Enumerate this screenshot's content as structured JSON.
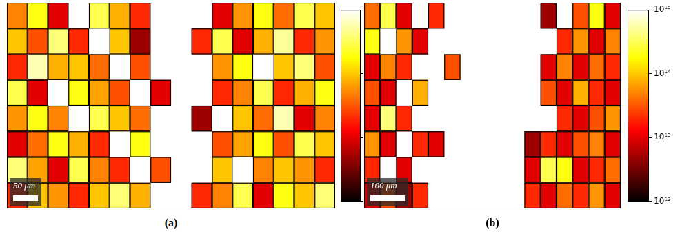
{
  "chart_data": [
    {
      "type": "heatmap",
      "label": "(a)",
      "scale_bar": "50 μm",
      "tick_labels": false,
      "log": true,
      "cells": [
        [
          50000000000000.0,
          200000000000000.0,
          10000000000000.0,
          null,
          300000000000000.0,
          80000000000000.0,
          20000000000000.0,
          null,
          null,
          null,
          10000000000000.0,
          60000000000000.0,
          200000000000000.0,
          40000000000000.0,
          300000000000000.0,
          100000000000000.0
        ],
        [
          100000000000000.0,
          30000000000000.0,
          400000000000000.0,
          20000000000000.0,
          null,
          100000000000000.0,
          5000000000000.0,
          null,
          null,
          20000000000000.0,
          300000000000000.0,
          10000000000000.0,
          80000000000000.0,
          500000000000000.0,
          20000000000000.0,
          60000000000000.0
        ],
        [
          20000000000000.0,
          600000000000000.0,
          80000000000000.0,
          100000000000000.0,
          40000000000000.0,
          null,
          30000000000000.0,
          null,
          null,
          null,
          60000000000000.0,
          200000000000000.0,
          null,
          100000000000000.0,
          400000000000000.0,
          30000000000000.0
        ],
        [
          300000000000000.0,
          10000000000000.0,
          null,
          200000000000000.0,
          70000000000000.0,
          30000000000000.0,
          null,
          10000000000000.0,
          null,
          null,
          20000000000000.0,
          50000000000000.0,
          300000000000000.0,
          20000000000000.0,
          80000000000000.0,
          200000000000000.0
        ],
        [
          60000000000000.0,
          200000000000000.0,
          50000000000000.0,
          null,
          300000000000000.0,
          100000000000000.0,
          40000000000000.0,
          null,
          null,
          5000000000000.0,
          null,
          100000000000000.0,
          40000000000000.0,
          600000000000000.0,
          10000000000000.0,
          50000000000000.0
        ],
        [
          10000000000000.0,
          40000000000000.0,
          200000000000000.0,
          80000000000000.0,
          20000000000000.0,
          null,
          200000000000000.0,
          null,
          null,
          null,
          30000000000000.0,
          70000000000000.0,
          200000000000000.0,
          30000000000000.0,
          300000000000000.0,
          100000000000000.0
        ],
        [
          400000000000000.0,
          70000000000000.0,
          10000000000000.0,
          300000000000000.0,
          50000000000000.0,
          20000000000000.0,
          null,
          30000000000000.0,
          null,
          null,
          100000000000000.0,
          null,
          50000000000000.0,
          100000000000000.0,
          60000000000000.0,
          20000000000000.0
        ],
        [
          20000000000000.0,
          100000000000000.0,
          60000000000000.0,
          20000000000000.0,
          100000000000000.0,
          400000000000000.0,
          80000000000000.0,
          null,
          null,
          20000000000000.0,
          50000000000000.0,
          300000000000000.0,
          10000000000000.0,
          200000000000000.0,
          100000000000000.0,
          400000000000000.0
        ]
      ],
      "colorbar": {
        "range": [
          1000000000000.0,
          1000000000000000.0
        ],
        "ticks": [
          {
            "value": 1000000000000.0,
            "label": "10¹²"
          },
          {
            "value": 10000000000000.0,
            "label": "10¹³"
          },
          {
            "value": 100000000000000.0,
            "label": "10¹⁴"
          },
          {
            "value": 1000000000000000.0,
            "label": "10¹⁵"
          }
        ]
      }
    },
    {
      "type": "heatmap",
      "label": "(b)",
      "scale_bar": "100 μm",
      "tick_labels": false,
      "log": true,
      "cells": [
        [
          40000000000000.0,
          300000000000000.0,
          10000000000000.0,
          null,
          20000000000000.0,
          null,
          null,
          null,
          null,
          null,
          null,
          5000000000000.0,
          null,
          30000000000000.0,
          200000000000000.0,
          10000000000000.0
        ],
        [
          200000000000000.0,
          null,
          60000000000000.0,
          10000000000000.0,
          null,
          null,
          null,
          null,
          null,
          null,
          null,
          null,
          20000000000000.0,
          60000000000000.0,
          10000000000000.0,
          50000000000000.0
        ],
        [
          10000000000000.0,
          50000000000000.0,
          20000000000000.0,
          null,
          null,
          30000000000000.0,
          null,
          null,
          null,
          null,
          null,
          10000000000000.0,
          50000000000000.0,
          10000000000000.0,
          40000000000000.0,
          20000000000000.0
        ],
        [
          30000000000000.0,
          10000000000000.0,
          null,
          80000000000000.0,
          null,
          null,
          null,
          null,
          null,
          null,
          null,
          30000000000000.0,
          10000000000000.0,
          80000000000000.0,
          20000000000000.0,
          10000000000000.0
        ],
        [
          10000000000000.0,
          400000000000000.0,
          20000000000000.0,
          null,
          null,
          null,
          null,
          null,
          null,
          null,
          null,
          null,
          20000000000000.0,
          10000000000000.0,
          30000000000000.0,
          60000000000000.0
        ],
        [
          60000000000000.0,
          10000000000000.0,
          null,
          20000000000000.0,
          10000000000000.0,
          null,
          null,
          null,
          null,
          null,
          5000000000000.0,
          20000000000000.0,
          10000000000000.0,
          30000000000000.0,
          50000000000000.0,
          10000000000000.0
        ],
        [
          20000000000000.0,
          null,
          10000000000000.0,
          null,
          null,
          null,
          null,
          null,
          null,
          null,
          10000000000000.0,
          300000000000000.0,
          200000000000000.0,
          10000000000000.0,
          20000000000000.0,
          40000000000000.0
        ],
        [
          10000000000000.0,
          30000000000000.0,
          5000000000000.0,
          20000000000000.0,
          null,
          null,
          null,
          null,
          null,
          null,
          20000000000000.0,
          10000000000000.0,
          40000000000000.0,
          20000000000000.0,
          60000000000000.0,
          10000000000000.0
        ]
      ],
      "colorbar": {
        "range": [
          1000000000000.0,
          1000000000000000.0
        ],
        "ticks": [
          {
            "value": 1000000000000.0,
            "label": "10¹²"
          },
          {
            "value": 10000000000000.0,
            "label": "10¹³"
          },
          {
            "value": 100000000000000.0,
            "label": "10¹⁴"
          },
          {
            "value": 1000000000000000.0,
            "label": "10¹⁵"
          }
        ]
      }
    }
  ]
}
